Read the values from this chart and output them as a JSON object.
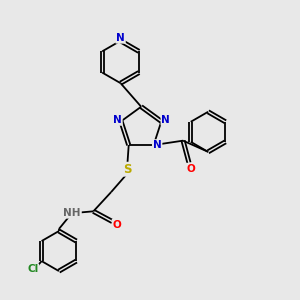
{
  "background_color": "#e8e8e8",
  "bond_color": "#000000",
  "atom_colors": {
    "N": "#0000cc",
    "O": "#ff0000",
    "S": "#bbaa00",
    "Cl": "#228822",
    "H": "#666666",
    "C": "#000000"
  },
  "font_size": 7.5,
  "bond_width": 1.3,
  "doffset": 0.055,
  "figsize": [
    3.0,
    3.0
  ],
  "dpi": 100,
  "xlim": [
    0,
    10
  ],
  "ylim": [
    0,
    10
  ]
}
